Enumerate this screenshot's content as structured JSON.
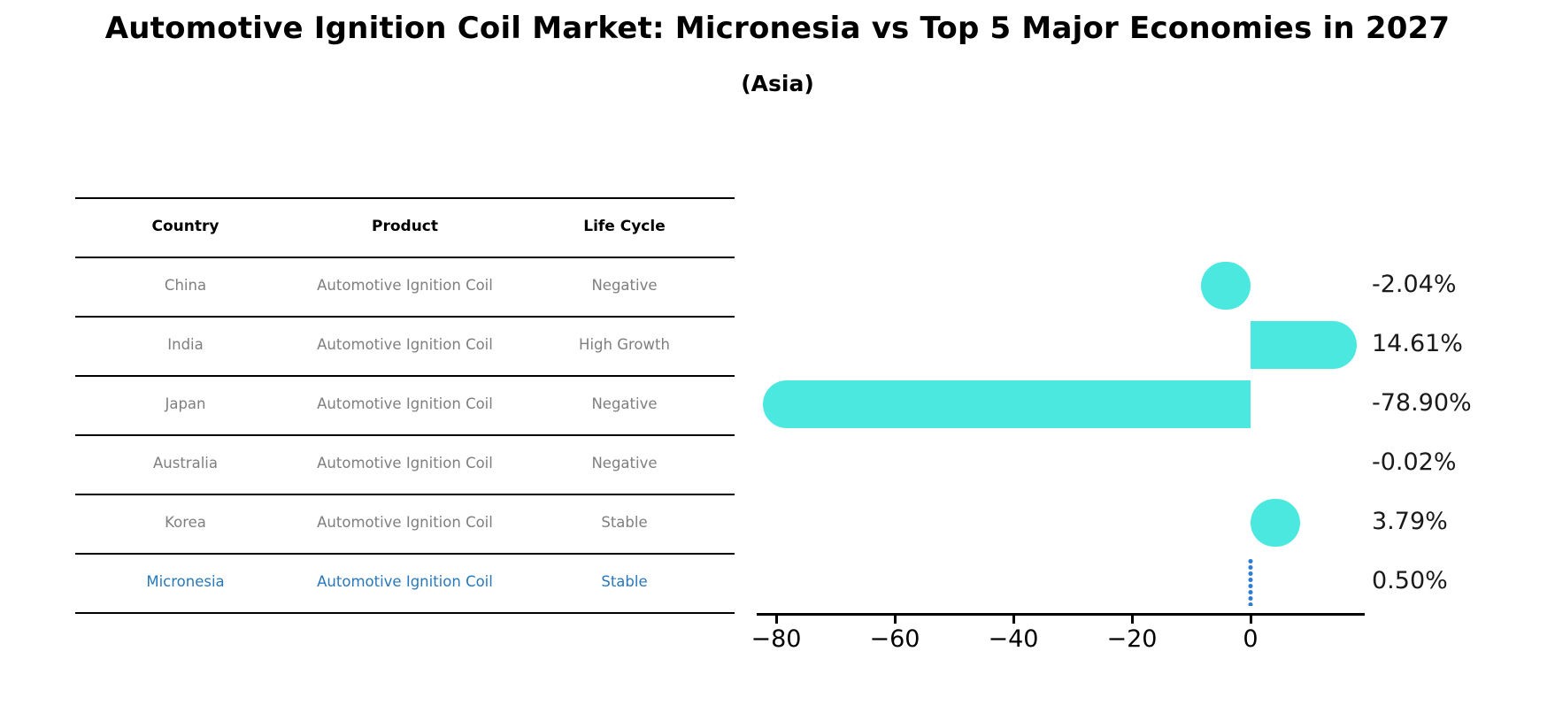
{
  "title": "Automotive Ignition Coil Market: Micronesia vs Top 5 Major Economies in 2027",
  "subtitle": "(Asia)",
  "table": {
    "headers": [
      "Country",
      "Product",
      "Life Cycle"
    ],
    "rows": [
      {
        "country": "China",
        "product": "Automotive Ignition Coil",
        "life_cycle": "Negative",
        "highlight": false
      },
      {
        "country": "India",
        "product": "Automotive Ignition Coil",
        "life_cycle": "High Growth",
        "highlight": false
      },
      {
        "country": "Japan",
        "product": "Automotive Ignition Coil",
        "life_cycle": "Negative",
        "highlight": false
      },
      {
        "country": "Australia",
        "product": "Automotive Ignition Coil",
        "life_cycle": "Negative",
        "highlight": false
      },
      {
        "country": "Korea",
        "product": "Automotive Ignition Coil",
        "life_cycle": "Stable",
        "highlight": false
      },
      {
        "country": "Micronesia",
        "product": "Automotive Ignition Coil",
        "life_cycle": "Stable",
        "highlight": true
      }
    ]
  },
  "chart_data": {
    "type": "bar",
    "orientation": "horizontal",
    "title": "Automotive Ignition Coil Market: Micronesia vs Top 5 Major Economies in 2027 (Asia)",
    "categories": [
      "China",
      "India",
      "Japan",
      "Australia",
      "Korea",
      "Micronesia"
    ],
    "values": [
      -2.04,
      14.61,
      -78.9,
      -0.02,
      3.79,
      0.5
    ],
    "value_labels": [
      "-2.04%",
      "14.61%",
      "-78.90%",
      "-0.02%",
      "3.79%",
      "0.50%"
    ],
    "xticks": [
      -80,
      -60,
      -40,
      -20,
      0
    ],
    "xtick_labels": [
      "−80",
      "−60",
      "−40",
      "−20",
      "0"
    ],
    "xlim": [
      -83.6,
      19.3
    ],
    "grid": false,
    "legend": null,
    "bar_color": "#4AE8DF",
    "highlight_bar_color": "#2F7CD6",
    "highlight_text_color": "#2878bd",
    "text_color_muted": "#7f7f7f",
    "highlight_index": 5,
    "highlight_style": "dotted-line"
  }
}
